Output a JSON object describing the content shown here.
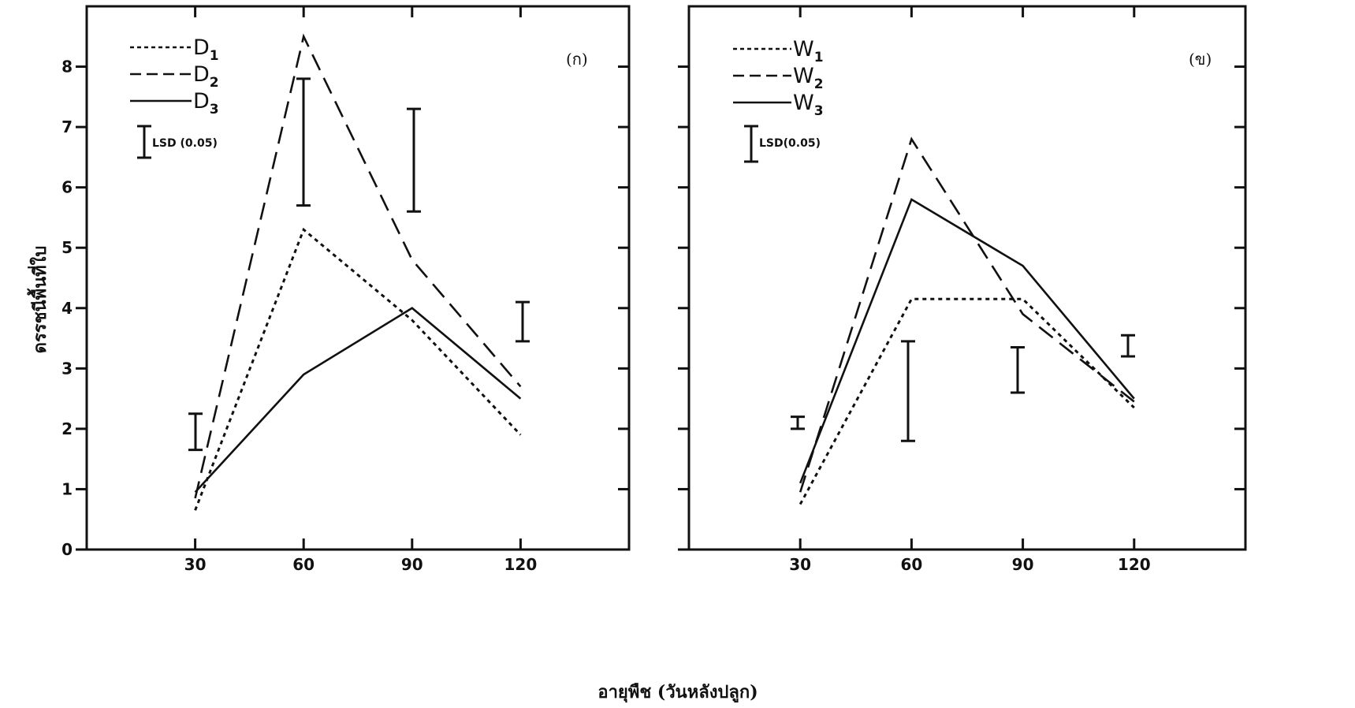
{
  "y_axis_label": "ดรรชนีพื้นที่ใบ",
  "x_axis_label": "อายุพืช (วันหลังปลูก)",
  "chart_data": [
    {
      "type": "line",
      "panel_label": "(ก)",
      "x": [
        30,
        60,
        90,
        120
      ],
      "xticks": [
        "30",
        "60",
        "90",
        "120"
      ],
      "yticks": [
        "0",
        "1",
        "2",
        "3",
        "4",
        "5",
        "6",
        "7",
        "8"
      ],
      "xlim": [
        0,
        150
      ],
      "ylim": [
        0,
        9
      ],
      "series": [
        {
          "name": "D",
          "sub": "1",
          "dash": "dotted",
          "values": [
            0.65,
            5.3,
            3.8,
            1.9
          ]
        },
        {
          "name": "D",
          "sub": "2",
          "dash": "dashed",
          "values": [
            0.85,
            8.5,
            4.8,
            2.7
          ]
        },
        {
          "name": "D",
          "sub": "3",
          "dash": "solid",
          "values": [
            0.95,
            2.9,
            4.0,
            2.5
          ]
        }
      ],
      "lsd": {
        "label": "LSD (0.05)",
        "bars": [
          {
            "x": 30,
            "low": 1.65,
            "high": 2.25
          },
          {
            "x": 60,
            "low": 5.7,
            "high": 7.8
          },
          {
            "x": 90,
            "low": 5.6,
            "high": 7.3
          },
          {
            "x": 120,
            "low": 3.45,
            "high": 4.1
          }
        ]
      },
      "legend_position": "top-left"
    },
    {
      "type": "line",
      "panel_label": "(ข)",
      "x": [
        30,
        60,
        90,
        120
      ],
      "xticks": [
        "30",
        "60",
        "90",
        "120"
      ],
      "yticks": [],
      "xlim": [
        0,
        150
      ],
      "ylim": [
        0,
        9
      ],
      "series": [
        {
          "name": "W",
          "sub": "1",
          "dash": "dotted",
          "values": [
            0.75,
            4.15,
            4.15,
            2.35
          ]
        },
        {
          "name": "W",
          "sub": "2",
          "dash": "dashed",
          "values": [
            0.95,
            6.8,
            3.9,
            2.45
          ]
        },
        {
          "name": "W",
          "sub": "3",
          "dash": "solid",
          "values": [
            1.1,
            5.8,
            4.7,
            2.5
          ]
        }
      ],
      "lsd": {
        "label": "LSD(0.05)",
        "bars": [
          {
            "x": 30,
            "low": 2.0,
            "high": 2.2
          },
          {
            "x": 60,
            "low": 1.8,
            "high": 3.45
          },
          {
            "x": 90,
            "low": 2.6,
            "high": 3.35
          },
          {
            "x": 120,
            "low": 3.2,
            "high": 3.55
          }
        ]
      },
      "legend_position": "top-left"
    }
  ]
}
